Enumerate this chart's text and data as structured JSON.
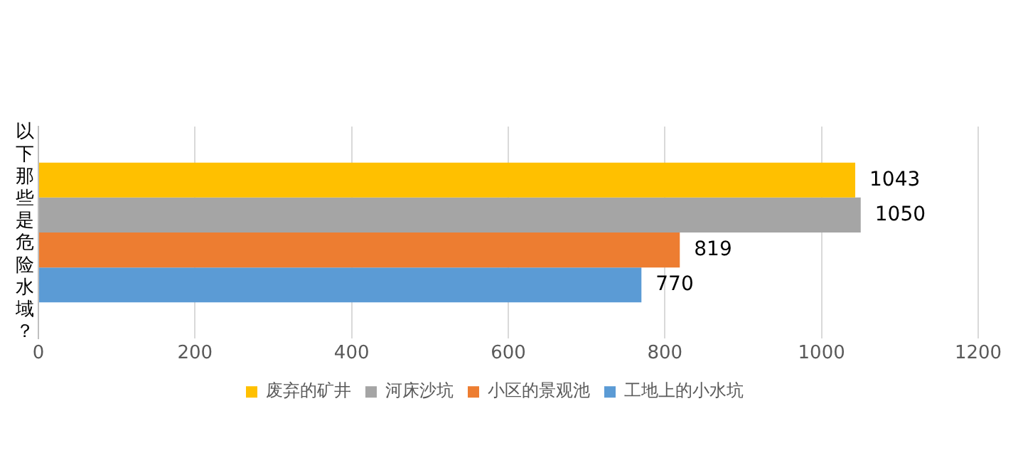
{
  "chart_data": {
    "type": "bar",
    "orientation": "horizontal",
    "categories": [
      "以下那些是危险水域？"
    ],
    "series": [
      {
        "name": "废弃的矿井",
        "color": "#ffc000",
        "values": [
          1043
        ]
      },
      {
        "name": "河床沙坑",
        "color": "#a5a5a5",
        "values": [
          1050
        ]
      },
      {
        "name": "小区的景观池",
        "color": "#ed7d31",
        "values": [
          819
        ]
      },
      {
        "name": "工地上的小水坑",
        "color": "#5b9bd5",
        "values": [
          770
        ]
      }
    ],
    "xlim": [
      0,
      1200
    ],
    "xticks": [
      0,
      200,
      400,
      600,
      800,
      1000,
      1200
    ],
    "grid": "x",
    "legend": "bottom",
    "data_labels": true
  }
}
